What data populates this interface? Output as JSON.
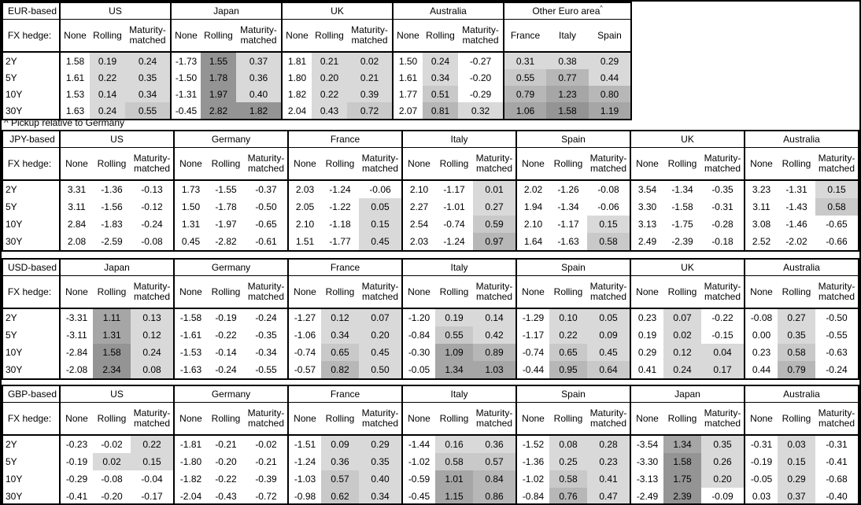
{
  "page": {
    "background_color": "#ffffff",
    "frame_color": "#000000"
  },
  "footnote": "^ Pickup relative to Germany",
  "row_label_header": "FX hedge:",
  "row_labels": [
    "2Y",
    "5Y",
    "10Y",
    "30Y"
  ],
  "hedge_columns": [
    "None",
    "Rolling",
    "Maturity-matched"
  ],
  "heatmap": {
    "description": "positive values in shaded columns get darker gray as value rises",
    "negative_color": "#ffffff",
    "thresholds": [
      0.5,
      0.75,
      1.0,
      1.5
    ],
    "colors": [
      "#d9d9d9",
      "#c9c9c9",
      "#b7b7b7",
      "#a6a6a6",
      "#949494"
    ]
  },
  "tables": [
    {
      "base": "EUR-based",
      "groups": [
        {
          "name": "US",
          "columns": [
            "None",
            "Rolling",
            "Maturity-matched"
          ],
          "shaded_columns": [
            false,
            true,
            true
          ],
          "rows": [
            [
              "1.58",
              "0.19",
              "0.24"
            ],
            [
              "1.61",
              "0.22",
              "0.35"
            ],
            [
              "1.53",
              "0.14",
              "0.34"
            ],
            [
              "1.63",
              "0.24",
              "0.55"
            ]
          ]
        },
        {
          "name": "Japan",
          "columns": [
            "None",
            "Rolling",
            "Maturity-matched"
          ],
          "shaded_columns": [
            false,
            true,
            true
          ],
          "rows": [
            [
              "-1.73",
              "1.55",
              "0.37"
            ],
            [
              "-1.50",
              "1.78",
              "0.36"
            ],
            [
              "-1.31",
              "1.97",
              "0.40"
            ],
            [
              "-0.45",
              "2.82",
              "1.82"
            ]
          ]
        },
        {
          "name": "UK",
          "columns": [
            "None",
            "Rolling",
            "Maturity-matched"
          ],
          "shaded_columns": [
            false,
            true,
            true
          ],
          "rows": [
            [
              "1.81",
              "0.21",
              "0.02"
            ],
            [
              "1.80",
              "0.20",
              "0.21"
            ],
            [
              "1.82",
              "0.22",
              "0.39"
            ],
            [
              "2.04",
              "0.43",
              "0.72"
            ]
          ]
        },
        {
          "name": "Australia",
          "columns": [
            "None",
            "Rolling",
            "Maturity-matched"
          ],
          "shaded_columns": [
            false,
            true,
            true
          ],
          "rows": [
            [
              "1.50",
              "0.24",
              "-0.27"
            ],
            [
              "1.61",
              "0.34",
              "-0.20"
            ],
            [
              "1.77",
              "0.51",
              "-0.29"
            ],
            [
              "2.07",
              "0.81",
              "0.32"
            ]
          ]
        },
        {
          "name": "Other Euro area",
          "sup": "^",
          "columns": [
            "France",
            "Italy",
            "Spain"
          ],
          "shaded_columns": [
            true,
            true,
            true
          ],
          "rows": [
            [
              "0.31",
              "0.38",
              "0.29"
            ],
            [
              "0.55",
              "0.77",
              "0.44"
            ],
            [
              "0.79",
              "1.23",
              "0.80"
            ],
            [
              "1.06",
              "1.58",
              "1.19"
            ]
          ]
        }
      ]
    },
    {
      "base": "JPY-based",
      "groups": [
        {
          "name": "US",
          "columns": [
            "None",
            "Rolling",
            "Maturity-matched"
          ],
          "shaded_columns": [
            false,
            true,
            true
          ],
          "rows": [
            [
              "3.31",
              "-1.36",
              "-0.13"
            ],
            [
              "3.11",
              "-1.56",
              "-0.12"
            ],
            [
              "2.84",
              "-1.83",
              "-0.24"
            ],
            [
              "2.08",
              "-2.59",
              "-0.08"
            ]
          ]
        },
        {
          "name": "Germany",
          "columns": [
            "None",
            "Rolling",
            "Maturity-matched"
          ],
          "shaded_columns": [
            false,
            true,
            true
          ],
          "rows": [
            [
              "1.73",
              "-1.55",
              "-0.37"
            ],
            [
              "1.50",
              "-1.78",
              "-0.50"
            ],
            [
              "1.31",
              "-1.97",
              "-0.65"
            ],
            [
              "0.45",
              "-2.82",
              "-0.61"
            ]
          ]
        },
        {
          "name": "France",
          "columns": [
            "None",
            "Rolling",
            "Maturity-matched"
          ],
          "shaded_columns": [
            false,
            true,
            true
          ],
          "rows": [
            [
              "2.03",
              "-1.24",
              "-0.06"
            ],
            [
              "2.05",
              "-1.22",
              "0.05"
            ],
            [
              "2.10",
              "-1.18",
              "0.15"
            ],
            [
              "1.51",
              "-1.77",
              "0.45"
            ]
          ]
        },
        {
          "name": "Italy",
          "columns": [
            "None",
            "Rolling",
            "Maturity-matched"
          ],
          "shaded_columns": [
            false,
            true,
            true
          ],
          "rows": [
            [
              "2.10",
              "-1.17",
              "0.01"
            ],
            [
              "2.27",
              "-1.01",
              "0.27"
            ],
            [
              "2.54",
              "-0.74",
              "0.59"
            ],
            [
              "2.03",
              "-1.24",
              "0.97"
            ]
          ]
        },
        {
          "name": "Spain",
          "columns": [
            "None",
            "Rolling",
            "Maturity-matched"
          ],
          "shaded_columns": [
            false,
            true,
            true
          ],
          "rows": [
            [
              "2.02",
              "-1.26",
              "-0.08"
            ],
            [
              "1.94",
              "-1.34",
              "-0.06"
            ],
            [
              "2.10",
              "-1.17",
              "0.15"
            ],
            [
              "1.64",
              "-1.63",
              "0.58"
            ]
          ]
        },
        {
          "name": "UK",
          "columns": [
            "None",
            "Rolling",
            "Maturity-matched"
          ],
          "shaded_columns": [
            false,
            true,
            true
          ],
          "rows": [
            [
              "3.54",
              "-1.34",
              "-0.35"
            ],
            [
              "3.30",
              "-1.58",
              "-0.31"
            ],
            [
              "3.13",
              "-1.75",
              "-0.28"
            ],
            [
              "2.49",
              "-2.39",
              "-0.18"
            ]
          ]
        },
        {
          "name": "Australia",
          "columns": [
            "None",
            "Rolling",
            "Maturity-matched"
          ],
          "shaded_columns": [
            false,
            true,
            true
          ],
          "rows": [
            [
              "3.23",
              "-1.31",
              "0.15"
            ],
            [
              "3.11",
              "-1.43",
              "0.58"
            ],
            [
              "3.08",
              "-1.46",
              "-0.65"
            ],
            [
              "2.52",
              "-2.02",
              "-0.66"
            ]
          ]
        }
      ]
    },
    {
      "base": "USD-based",
      "groups": [
        {
          "name": "Japan",
          "columns": [
            "None",
            "Rolling",
            "Maturity-matched"
          ],
          "shaded_columns": [
            false,
            true,
            true
          ],
          "rows": [
            [
              "-3.31",
              "1.11",
              "0.13"
            ],
            [
              "-3.11",
              "1.31",
              "0.12"
            ],
            [
              "-2.84",
              "1.58",
              "0.24"
            ],
            [
              "-2.08",
              "2.34",
              "0.08"
            ]
          ]
        },
        {
          "name": "Germany",
          "columns": [
            "None",
            "Rolling",
            "Maturity-matched"
          ],
          "shaded_columns": [
            false,
            true,
            true
          ],
          "rows": [
            [
              "-1.58",
              "-0.19",
              "-0.24"
            ],
            [
              "-1.61",
              "-0.22",
              "-0.35"
            ],
            [
              "-1.53",
              "-0.14",
              "-0.34"
            ],
            [
              "-1.63",
              "-0.24",
              "-0.55"
            ]
          ]
        },
        {
          "name": "France",
          "columns": [
            "None",
            "Rolling",
            "Maturity-matched"
          ],
          "shaded_columns": [
            false,
            true,
            true
          ],
          "rows": [
            [
              "-1.27",
              "0.12",
              "0.07"
            ],
            [
              "-1.06",
              "0.34",
              "0.20"
            ],
            [
              "-0.74",
              "0.65",
              "0.45"
            ],
            [
              "-0.57",
              "0.82",
              "0.50"
            ]
          ]
        },
        {
          "name": "Italy",
          "columns": [
            "None",
            "Rolling",
            "Maturity-matched"
          ],
          "shaded_columns": [
            false,
            true,
            true
          ],
          "rows": [
            [
              "-1.20",
              "0.19",
              "0.14"
            ],
            [
              "-0.84",
              "0.55",
              "0.42"
            ],
            [
              "-0.30",
              "1.09",
              "0.89"
            ],
            [
              "-0.05",
              "1.34",
              "1.03"
            ]
          ]
        },
        {
          "name": "Spain",
          "columns": [
            "None",
            "Rolling",
            "Maturity-matched"
          ],
          "shaded_columns": [
            false,
            true,
            true
          ],
          "rows": [
            [
              "-1.29",
              "0.10",
              "0.05"
            ],
            [
              "-1.17",
              "0.22",
              "0.09"
            ],
            [
              "-0.74",
              "0.65",
              "0.45"
            ],
            [
              "-0.44",
              "0.95",
              "0.64"
            ]
          ]
        },
        {
          "name": "UK",
          "columns": [
            "None",
            "Rolling",
            "Maturity-matched"
          ],
          "shaded_columns": [
            false,
            true,
            true
          ],
          "rows": [
            [
              "0.23",
              "0.07",
              "-0.22"
            ],
            [
              "0.19",
              "0.02",
              "-0.15"
            ],
            [
              "0.29",
              "0.12",
              "0.04"
            ],
            [
              "0.41",
              "0.24",
              "0.17"
            ]
          ]
        },
        {
          "name": "Australia",
          "columns": [
            "None",
            "Rolling",
            "Maturity-matched"
          ],
          "shaded_columns": [
            false,
            true,
            true
          ],
          "rows": [
            [
              "-0.08",
              "0.27",
              "-0.50"
            ],
            [
              "0.00",
              "0.35",
              "-0.55"
            ],
            [
              "0.23",
              "0.58",
              "-0.63"
            ],
            [
              "0.44",
              "0.79",
              "-0.24"
            ]
          ]
        }
      ]
    },
    {
      "base": "GBP-based",
      "groups": [
        {
          "name": "US",
          "columns": [
            "None",
            "Rolling",
            "Maturity-matched"
          ],
          "shaded_columns": [
            false,
            true,
            true
          ],
          "rows": [
            [
              "-0.23",
              "-0.02",
              "0.22"
            ],
            [
              "-0.19",
              "0.02",
              "0.15"
            ],
            [
              "-0.29",
              "-0.08",
              "-0.04"
            ],
            [
              "-0.41",
              "-0.20",
              "-0.17"
            ]
          ]
        },
        {
          "name": "Germany",
          "columns": [
            "None",
            "Rolling",
            "Maturity-matched"
          ],
          "shaded_columns": [
            false,
            true,
            true
          ],
          "rows": [
            [
              "-1.81",
              "-0.21",
              "-0.02"
            ],
            [
              "-1.80",
              "-0.20",
              "-0.21"
            ],
            [
              "-1.82",
              "-0.22",
              "-0.39"
            ],
            [
              "-2.04",
              "-0.43",
              "-0.72"
            ]
          ]
        },
        {
          "name": "France",
          "columns": [
            "None",
            "Rolling",
            "Maturity-matched"
          ],
          "shaded_columns": [
            false,
            true,
            true
          ],
          "rows": [
            [
              "-1.51",
              "0.09",
              "0.29"
            ],
            [
              "-1.24",
              "0.36",
              "0.35"
            ],
            [
              "-1.03",
              "0.57",
              "0.40"
            ],
            [
              "-0.98",
              "0.62",
              "0.34"
            ]
          ]
        },
        {
          "name": "Italy",
          "columns": [
            "None",
            "Rolling",
            "Maturity-matched"
          ],
          "shaded_columns": [
            false,
            true,
            true
          ],
          "rows": [
            [
              "-1.44",
              "0.16",
              "0.36"
            ],
            [
              "-1.02",
              "0.58",
              "0.57"
            ],
            [
              "-0.59",
              "1.01",
              "0.84"
            ],
            [
              "-0.45",
              "1.15",
              "0.86"
            ]
          ]
        },
        {
          "name": "Spain",
          "columns": [
            "None",
            "Rolling",
            "Maturity-matched"
          ],
          "shaded_columns": [
            false,
            true,
            true
          ],
          "rows": [
            [
              "-1.52",
              "0.08",
              "0.28"
            ],
            [
              "-1.36",
              "0.25",
              "0.23"
            ],
            [
              "-1.02",
              "0.58",
              "0.41"
            ],
            [
              "-0.84",
              "0.76",
              "0.47"
            ]
          ]
        },
        {
          "name": "Japan",
          "columns": [
            "None",
            "Rolling",
            "Maturity-matched"
          ],
          "shaded_columns": [
            false,
            true,
            true
          ],
          "rows": [
            [
              "-3.54",
              "1.34",
              "0.35"
            ],
            [
              "-3.30",
              "1.58",
              "0.26"
            ],
            [
              "-3.13",
              "1.75",
              "0.20"
            ],
            [
              "-2.49",
              "2.39",
              "-0.09"
            ]
          ]
        },
        {
          "name": "Australia",
          "columns": [
            "None",
            "Rolling",
            "Maturity-matched"
          ],
          "shaded_columns": [
            false,
            true,
            true
          ],
          "rows": [
            [
              "-0.31",
              "0.03",
              "-0.31"
            ],
            [
              "-0.19",
              "0.15",
              "-0.41"
            ],
            [
              "-0.05",
              "0.29",
              "-0.68"
            ],
            [
              "0.03",
              "0.37",
              "-0.40"
            ]
          ]
        }
      ]
    }
  ]
}
